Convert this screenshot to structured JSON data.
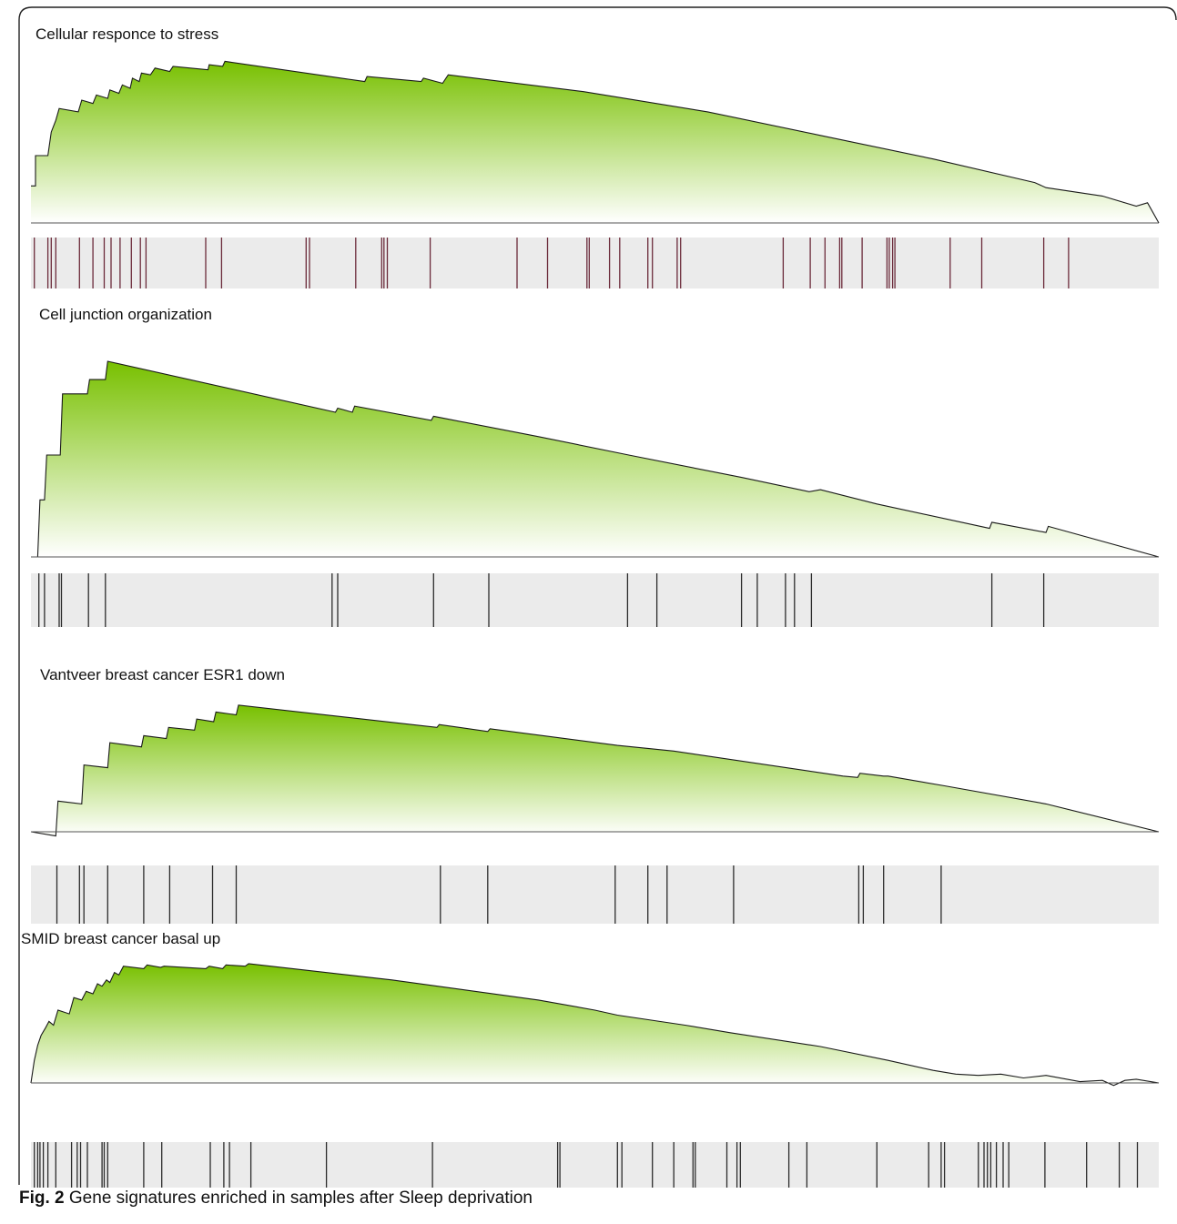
{
  "figure": {
    "caption_label": "Fig. 2",
    "caption_text": "Gene signatures enriched in samples after Sleep deprivation"
  },
  "colors": {
    "fill_top": "#78c000",
    "fill_bottom": "#ffffff",
    "barcode_bg": "#ebebeb",
    "barcode_line_first": "#6b2a3a",
    "barcode_line": "#2b2b2b"
  },
  "chart_data": [
    {
      "type": "area",
      "title": "Cellular responce to stress",
      "x_range": [
        0,
        1
      ],
      "y_range": [
        0,
        1
      ],
      "curve": [
        [
          0,
          0.22
        ],
        [
          0.004,
          0.22
        ],
        [
          0.004,
          0.4
        ],
        [
          0.015,
          0.4
        ],
        [
          0.018,
          0.54
        ],
        [
          0.022,
          0.61
        ],
        [
          0.025,
          0.68
        ],
        [
          0.042,
          0.66
        ],
        [
          0.045,
          0.73
        ],
        [
          0.055,
          0.71
        ],
        [
          0.058,
          0.76
        ],
        [
          0.068,
          0.74
        ],
        [
          0.07,
          0.79
        ],
        [
          0.078,
          0.77
        ],
        [
          0.081,
          0.82
        ],
        [
          0.088,
          0.8
        ],
        [
          0.09,
          0.86
        ],
        [
          0.096,
          0.84
        ],
        [
          0.098,
          0.89
        ],
        [
          0.106,
          0.88
        ],
        [
          0.11,
          0.92
        ],
        [
          0.123,
          0.9
        ],
        [
          0.126,
          0.93
        ],
        [
          0.157,
          0.91
        ],
        [
          0.158,
          0.94
        ],
        [
          0.17,
          0.93
        ],
        [
          0.172,
          0.96
        ],
        [
          0.296,
          0.84
        ],
        [
          0.298,
          0.87
        ],
        [
          0.346,
          0.84
        ],
        [
          0.348,
          0.86
        ],
        [
          0.365,
          0.83
        ],
        [
          0.37,
          0.88
        ],
        [
          0.49,
          0.78
        ],
        [
          0.6,
          0.66
        ],
        [
          0.7,
          0.52
        ],
        [
          0.8,
          0.38
        ],
        [
          0.89,
          0.24
        ],
        [
          0.9,
          0.21
        ],
        [
          0.95,
          0.16
        ],
        [
          0.98,
          0.1
        ],
        [
          0.99,
          0.12
        ],
        [
          1,
          0
        ]
      ],
      "hits": [
        0.003,
        0.015,
        0.018,
        0.022,
        0.043,
        0.055,
        0.065,
        0.071,
        0.079,
        0.089,
        0.097,
        0.102,
        0.155,
        0.169,
        0.244,
        0.247,
        0.288,
        0.311,
        0.313,
        0.316,
        0.354,
        0.431,
        0.458,
        0.493,
        0.495,
        0.513,
        0.522,
        0.547,
        0.551,
        0.573,
        0.576,
        0.667,
        0.691,
        0.704,
        0.717,
        0.719,
        0.737,
        0.759,
        0.761,
        0.764,
        0.766,
        0.815,
        0.843,
        0.898,
        0.92
      ]
    },
    {
      "type": "area",
      "title": "Cell junction organization",
      "x_range": [
        0,
        1
      ],
      "y_range": [
        0,
        1
      ],
      "curve": [
        [
          0,
          0.0
        ],
        [
          0.006,
          0.0
        ],
        [
          0.008,
          0.28
        ],
        [
          0.012,
          0.28
        ],
        [
          0.014,
          0.5
        ],
        [
          0.026,
          0.5
        ],
        [
          0.028,
          0.8
        ],
        [
          0.05,
          0.8
        ],
        [
          0.052,
          0.87
        ],
        [
          0.066,
          0.87
        ],
        [
          0.068,
          0.96
        ],
        [
          0.27,
          0.71
        ],
        [
          0.272,
          0.73
        ],
        [
          0.285,
          0.71
        ],
        [
          0.287,
          0.74
        ],
        [
          0.355,
          0.67
        ],
        [
          0.357,
          0.69
        ],
        [
          0.45,
          0.59
        ],
        [
          0.53,
          0.5
        ],
        [
          0.63,
          0.39
        ],
        [
          0.69,
          0.32
        ],
        [
          0.7,
          0.33
        ],
        [
          0.75,
          0.26
        ],
        [
          0.85,
          0.14
        ],
        [
          0.852,
          0.17
        ],
        [
          0.9,
          0.12
        ],
        [
          0.902,
          0.15
        ],
        [
          1,
          0.0
        ]
      ],
      "hits": [
        0.007,
        0.012,
        0.025,
        0.027,
        0.051,
        0.066,
        0.267,
        0.272,
        0.357,
        0.406,
        0.529,
        0.555,
        0.63,
        0.644,
        0.669,
        0.677,
        0.692,
        0.852,
        0.898
      ]
    },
    {
      "type": "area",
      "title": "Vantveer breast cancer ESR1 down",
      "x_range": [
        0,
        1
      ],
      "y_range": [
        -0.05,
        1
      ],
      "curve": [
        [
          0,
          0.0
        ],
        [
          0.022,
          -0.03
        ],
        [
          0.024,
          0.22
        ],
        [
          0.045,
          0.2
        ],
        [
          0.047,
          0.48
        ],
        [
          0.068,
          0.46
        ],
        [
          0.07,
          0.64
        ],
        [
          0.098,
          0.61
        ],
        [
          0.1,
          0.69
        ],
        [
          0.12,
          0.67
        ],
        [
          0.122,
          0.75
        ],
        [
          0.145,
          0.73
        ],
        [
          0.147,
          0.81
        ],
        [
          0.162,
          0.79
        ],
        [
          0.164,
          0.86
        ],
        [
          0.182,
          0.84
        ],
        [
          0.184,
          0.91
        ],
        [
          0.36,
          0.75
        ],
        [
          0.362,
          0.77
        ],
        [
          0.405,
          0.72
        ],
        [
          0.407,
          0.74
        ],
        [
          0.52,
          0.62
        ],
        [
          0.545,
          0.6
        ],
        [
          0.57,
          0.58
        ],
        [
          0.72,
          0.4
        ],
        [
          0.733,
          0.39
        ],
        [
          0.735,
          0.42
        ],
        [
          0.756,
          0.4
        ],
        [
          0.76,
          0.4
        ],
        [
          0.81,
          0.33
        ],
        [
          0.9,
          0.2
        ],
        [
          1,
          0.0
        ]
      ],
      "hits": [
        0.023,
        0.043,
        0.047,
        0.068,
        0.1,
        0.123,
        0.161,
        0.182,
        0.363,
        0.405,
        0.518,
        0.547,
        0.564,
        0.623,
        0.734,
        0.738,
        0.756,
        0.807
      ]
    },
    {
      "type": "area",
      "title": "SMID breast cancer basal up",
      "x_range": [
        0,
        1
      ],
      "y_range": [
        -0.05,
        1
      ],
      "curve": [
        [
          0,
          0.0
        ],
        [
          0.003,
          0.18
        ],
        [
          0.006,
          0.3
        ],
        [
          0.009,
          0.38
        ],
        [
          0.013,
          0.44
        ],
        [
          0.016,
          0.49
        ],
        [
          0.02,
          0.46
        ],
        [
          0.024,
          0.58
        ],
        [
          0.034,
          0.55
        ],
        [
          0.038,
          0.68
        ],
        [
          0.045,
          0.66
        ],
        [
          0.049,
          0.73
        ],
        [
          0.055,
          0.71
        ],
        [
          0.059,
          0.79
        ],
        [
          0.063,
          0.77
        ],
        [
          0.067,
          0.82
        ],
        [
          0.07,
          0.8
        ],
        [
          0.074,
          0.88
        ],
        [
          0.078,
          0.86
        ],
        [
          0.082,
          0.93
        ],
        [
          0.1,
          0.91
        ],
        [
          0.103,
          0.94
        ],
        [
          0.115,
          0.92
        ],
        [
          0.118,
          0.93
        ],
        [
          0.155,
          0.91
        ],
        [
          0.158,
          0.93
        ],
        [
          0.17,
          0.91
        ],
        [
          0.173,
          0.94
        ],
        [
          0.19,
          0.93
        ],
        [
          0.193,
          0.95
        ],
        [
          0.32,
          0.82
        ],
        [
          0.45,
          0.66
        ],
        [
          0.5,
          0.58
        ],
        [
          0.52,
          0.54
        ],
        [
          0.58,
          0.46
        ],
        [
          0.62,
          0.4
        ],
        [
          0.7,
          0.29
        ],
        [
          0.76,
          0.18
        ],
        [
          0.8,
          0.1
        ],
        [
          0.82,
          0.07
        ],
        [
          0.84,
          0.06
        ],
        [
          0.86,
          0.07
        ],
        [
          0.88,
          0.04
        ],
        [
          0.9,
          0.06
        ],
        [
          0.93,
          0.01
        ],
        [
          0.95,
          0.02
        ],
        [
          0.96,
          -0.02
        ],
        [
          0.97,
          0.02
        ],
        [
          0.98,
          0.03
        ],
        [
          1,
          0.0
        ]
      ],
      "hits": [
        0.003,
        0.006,
        0.008,
        0.011,
        0.015,
        0.022,
        0.036,
        0.041,
        0.044,
        0.05,
        0.063,
        0.065,
        0.068,
        0.1,
        0.116,
        0.159,
        0.171,
        0.176,
        0.195,
        0.262,
        0.356,
        0.467,
        0.469,
        0.52,
        0.524,
        0.551,
        0.57,
        0.587,
        0.589,
        0.617,
        0.626,
        0.629,
        0.672,
        0.688,
        0.75,
        0.796,
        0.807,
        0.81,
        0.84,
        0.845,
        0.848,
        0.851,
        0.856,
        0.862,
        0.867,
        0.899,
        0.936,
        0.965,
        0.981
      ]
    }
  ]
}
